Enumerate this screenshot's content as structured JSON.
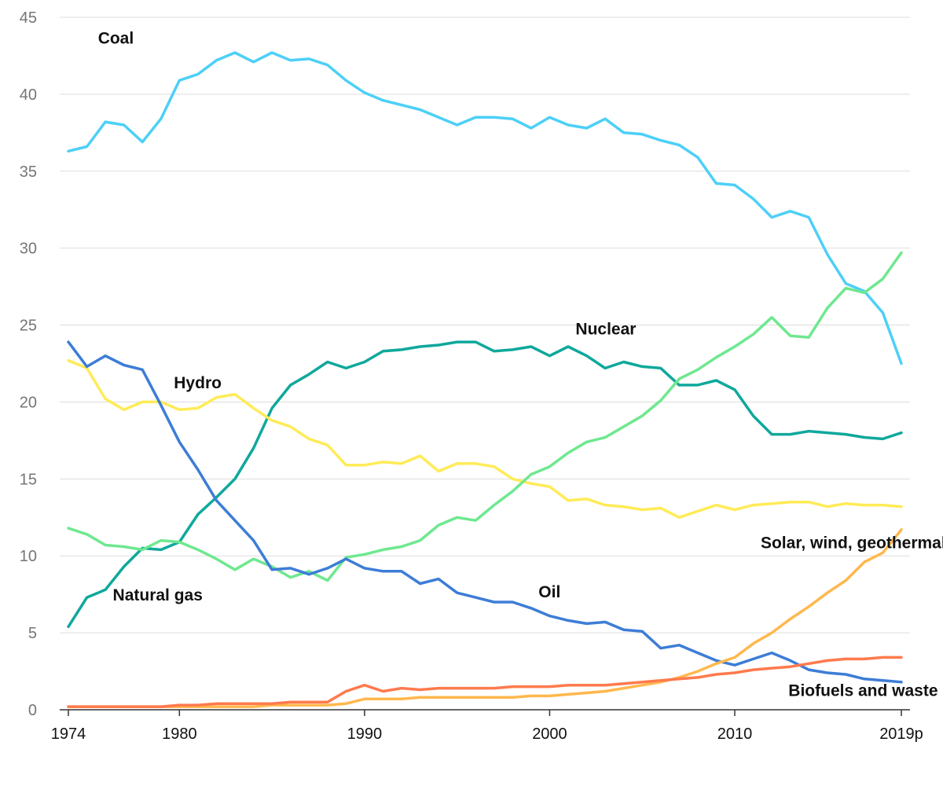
{
  "chart_data": {
    "type": "line",
    "title": "",
    "xlabel": "",
    "ylabel": "",
    "xlim": [
      1974,
      2019
    ],
    "ylim": [
      0,
      45
    ],
    "grid": true,
    "y_ticks": [
      "0",
      "5",
      "10",
      "15",
      "20",
      "25",
      "30",
      "35",
      "40",
      "45"
    ],
    "x_ticks": [
      {
        "year": 1974,
        "label": "1974"
      },
      {
        "year": 1980,
        "label": "1980"
      },
      {
        "year": 1990,
        "label": "1990"
      },
      {
        "year": 2000,
        "label": "2000"
      },
      {
        "year": 2010,
        "label": "2010"
      },
      {
        "year": 2019,
        "label": "2019p"
      }
    ],
    "x": [
      1974,
      1975,
      1976,
      1977,
      1978,
      1979,
      1980,
      1981,
      1982,
      1983,
      1984,
      1985,
      1986,
      1987,
      1988,
      1989,
      1990,
      1991,
      1992,
      1993,
      1994,
      1995,
      1996,
      1997,
      1998,
      1999,
      2000,
      2001,
      2002,
      2003,
      2004,
      2005,
      2006,
      2007,
      2008,
      2009,
      2010,
      2011,
      2012,
      2013,
      2014,
      2015,
      2016,
      2017,
      2018,
      2019
    ],
    "series": [
      {
        "name": "Coal",
        "color": "#4dd0f7",
        "label_year": 1975.6,
        "label_value": 43.3,
        "values": [
          36.3,
          36.6,
          38.2,
          38.0,
          36.9,
          38.4,
          40.9,
          41.3,
          42.2,
          42.7,
          42.1,
          42.7,
          42.2,
          42.3,
          41.9,
          40.9,
          40.1,
          39.6,
          39.3,
          39.0,
          38.5,
          38.0,
          38.5,
          38.5,
          38.4,
          37.8,
          38.5,
          38.0,
          37.8,
          38.4,
          37.5,
          37.4,
          37.0,
          36.7,
          35.9,
          34.2,
          34.1,
          33.2,
          32.0,
          32.4,
          32.0,
          29.6,
          27.7,
          27.2,
          25.8,
          22.5
        ]
      },
      {
        "name": "Nuclear",
        "color": "#0fa89c",
        "label_year": 2001.4,
        "label_value": 24.4,
        "values": [
          5.4,
          7.3,
          7.8,
          9.3,
          10.5,
          10.4,
          10.9,
          12.7,
          13.8,
          15.0,
          17.0,
          19.6,
          21.1,
          21.8,
          22.6,
          22.2,
          22.6,
          23.3,
          23.4,
          23.6,
          23.7,
          23.9,
          23.9,
          23.3,
          23.4,
          23.6,
          23.0,
          23.6,
          23.0,
          22.2,
          22.6,
          22.3,
          22.2,
          21.1,
          21.1,
          21.4,
          20.8,
          19.1,
          17.9,
          17.9,
          18.1,
          18.0,
          17.9,
          17.7,
          17.6,
          18.0
        ]
      },
      {
        "name": "Hydro",
        "color": "#ffeb57",
        "label_year": 1979.7,
        "label_value": 20.9,
        "values": [
          22.7,
          22.2,
          20.2,
          19.5,
          20.0,
          20.0,
          19.5,
          19.6,
          20.3,
          20.5,
          19.6,
          18.8,
          18.4,
          17.6,
          17.2,
          15.9,
          15.9,
          16.1,
          16.0,
          16.5,
          15.5,
          16.0,
          16.0,
          15.8,
          15.0,
          14.7,
          14.5,
          13.6,
          13.7,
          13.3,
          13.2,
          13.0,
          13.1,
          12.5,
          12.9,
          13.3,
          13.0,
          13.3,
          13.4,
          13.5,
          13.5,
          13.2,
          13.4,
          13.3,
          13.3,
          13.2
        ]
      },
      {
        "name": "Natural gas",
        "color": "#6ee88f",
        "label_year": 1976.4,
        "label_value": 7.1,
        "values": [
          11.8,
          11.4,
          10.7,
          10.6,
          10.4,
          11.0,
          10.9,
          10.4,
          9.8,
          9.1,
          9.8,
          9.3,
          8.6,
          9.0,
          8.4,
          9.9,
          10.1,
          10.4,
          10.6,
          11.0,
          12.0,
          12.5,
          12.3,
          13.3,
          14.2,
          15.3,
          15.8,
          16.7,
          17.4,
          17.7,
          18.4,
          19.1,
          20.1,
          21.5,
          22.1,
          22.9,
          23.6,
          24.4,
          25.5,
          24.3,
          24.2,
          26.1,
          27.4,
          27.1,
          28.0,
          29.7
        ]
      },
      {
        "name": "Oil",
        "color": "#3d7dd6",
        "label_year": 1999.4,
        "label_value": 7.3,
        "values": [
          23.9,
          22.3,
          23.0,
          22.4,
          22.1,
          19.8,
          17.4,
          15.6,
          13.6,
          12.3,
          11.0,
          9.1,
          9.2,
          8.8,
          9.2,
          9.8,
          9.2,
          9.0,
          9.0,
          8.2,
          8.5,
          7.6,
          7.3,
          7.0,
          7.0,
          6.6,
          6.1,
          5.8,
          5.6,
          5.7,
          5.2,
          5.1,
          4.0,
          4.2,
          3.7,
          3.2,
          2.9,
          3.3,
          3.7,
          3.2,
          2.6,
          2.4,
          2.3,
          2.0,
          1.9,
          1.8
        ]
      },
      {
        "name": "Solar, wind, geothermal, etc.",
        "color": "#ffb84d",
        "label_year": 2011.4,
        "label_value": 10.5,
        "values": [
          0.2,
          0.2,
          0.2,
          0.2,
          0.2,
          0.2,
          0.2,
          0.2,
          0.2,
          0.2,
          0.2,
          0.3,
          0.3,
          0.3,
          0.3,
          0.4,
          0.7,
          0.7,
          0.7,
          0.8,
          0.8,
          0.8,
          0.8,
          0.8,
          0.8,
          0.9,
          0.9,
          1.0,
          1.1,
          1.2,
          1.4,
          1.6,
          1.8,
          2.1,
          2.5,
          3.0,
          3.4,
          4.3,
          5.0,
          5.9,
          6.7,
          7.6,
          8.4,
          9.6,
          10.2,
          11.7
        ]
      },
      {
        "name": "Biofuels and waste",
        "color": "#ff7a4d",
        "label_year": 2012.9,
        "label_value": 0.9,
        "values": [
          0.2,
          0.2,
          0.2,
          0.2,
          0.2,
          0.2,
          0.3,
          0.3,
          0.4,
          0.4,
          0.4,
          0.4,
          0.5,
          0.5,
          0.5,
          1.2,
          1.6,
          1.2,
          1.4,
          1.3,
          1.4,
          1.4,
          1.4,
          1.4,
          1.5,
          1.5,
          1.5,
          1.6,
          1.6,
          1.6,
          1.7,
          1.8,
          1.9,
          2.0,
          2.1,
          2.3,
          2.4,
          2.6,
          2.7,
          2.8,
          3.0,
          3.2,
          3.3,
          3.3,
          3.4,
          3.4
        ]
      }
    ]
  }
}
